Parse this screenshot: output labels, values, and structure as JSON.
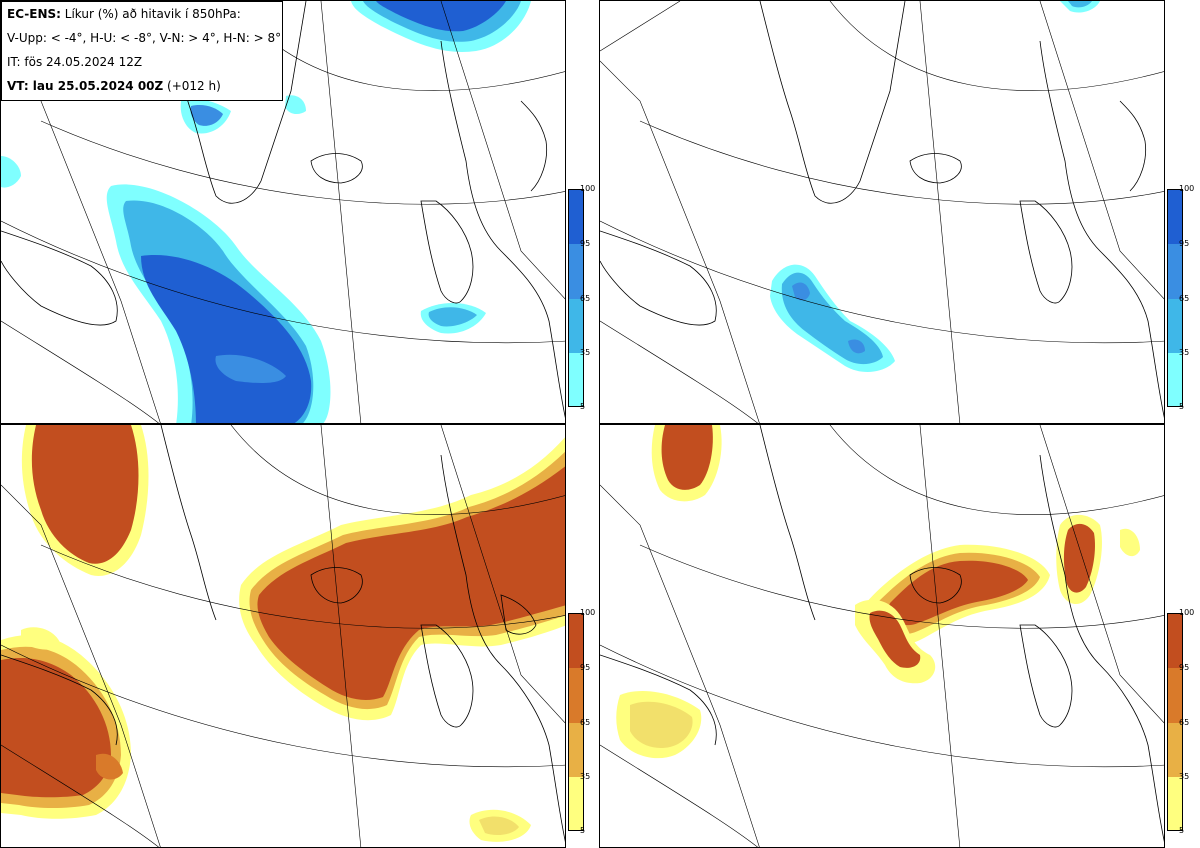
{
  "info": {
    "line1_bold": "EC-ENS:",
    "line1_rest": " Líkur (%) að hitavik í 850hPa:",
    "line2": "V-Upp: < -4°, H-U: < -8°, V-N: > 4°, H-N: > 8°",
    "line3": "IT: fös 24.05.2024 12Z",
    "line4_bold": "VT: lau 25.05.2024 00Z",
    "line4_rest": " (+012 h)"
  },
  "colors": {
    "blue": [
      "#7fffff",
      "#52e0f0",
      "#3fb7e8",
      "#3a8ee2",
      "#1f5fd2"
    ],
    "orange": [
      "#ffff7f",
      "#f2e06b",
      "#e8b045",
      "#d97a2a",
      "#c24e1f"
    ],
    "coast": "#000000",
    "grid": "#000000"
  },
  "colorbar": {
    "ticks": [
      "100",
      "95",
      "65",
      "35",
      "5"
    ]
  },
  "panels": [
    {
      "name": "top-left",
      "variable": "V-Upp",
      "scheme": "blue"
    },
    {
      "name": "top-right",
      "variable": "H-U",
      "scheme": "blue"
    },
    {
      "name": "bottom-left",
      "variable": "V-N",
      "scheme": "orange"
    },
    {
      "name": "bottom-right",
      "variable": "H-N",
      "scheme": "orange"
    }
  ]
}
